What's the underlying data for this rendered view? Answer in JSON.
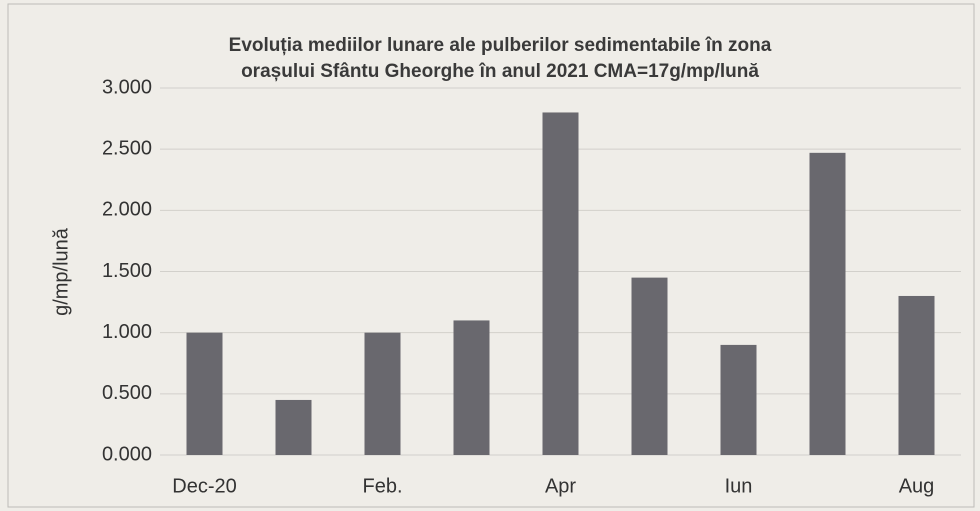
{
  "chart_data": {
    "type": "bar",
    "title": [
      "Evoluția mediilor lunare ale pulberilor sedimentabile în zona",
      "orașului Sfântu Gheorghe în anul 2021     CMA=17g/mp/lună"
    ],
    "y_label": "g/mp/lună",
    "categories": [
      "Dec-20",
      null,
      "Feb.",
      null,
      "Apr",
      null,
      "Iun",
      null,
      "Aug"
    ],
    "values": [
      1.0,
      0.45,
      1.0,
      1.1,
      2.8,
      1.45,
      0.9,
      2.47,
      1.3
    ],
    "color": "#69686e",
    "ylim": [
      0,
      3
    ],
    "yticks": [
      {
        "value": 0,
        "label": "0.000"
      },
      {
        "value": 0.5,
        "label": "0.500"
      },
      {
        "value": 1,
        "label": "1.000"
      },
      {
        "value": 1.5,
        "label": "1.500"
      },
      {
        "value": 2,
        "label": "2.000"
      },
      {
        "value": 2.5,
        "label": "2.500"
      },
      {
        "value": 3,
        "label": "3.000"
      }
    ],
    "grid": true
  }
}
